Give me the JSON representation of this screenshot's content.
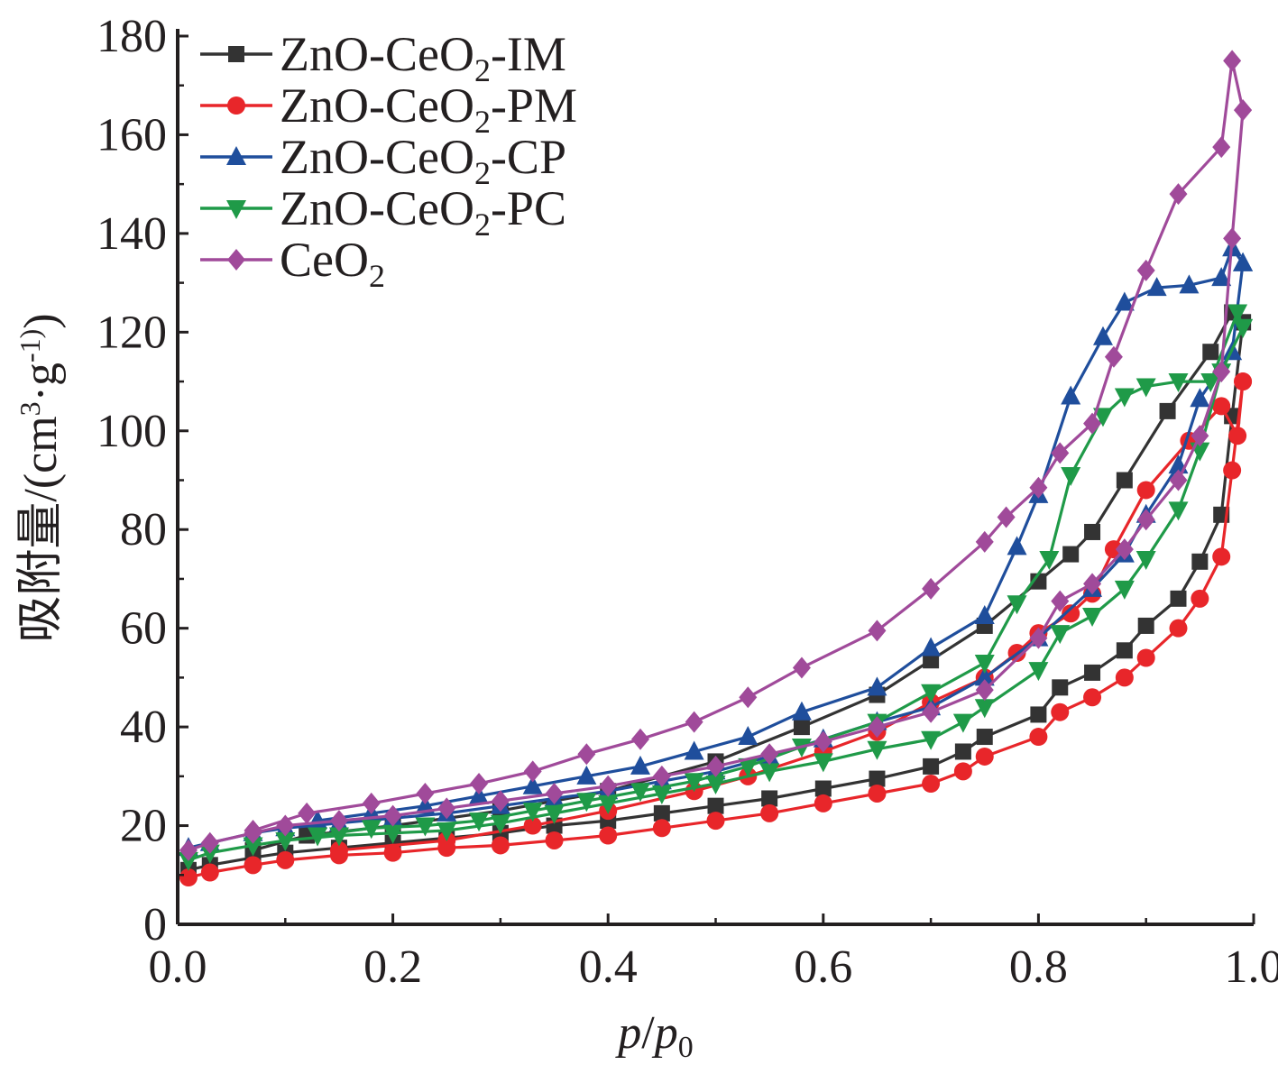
{
  "chart_data": {
    "type": "line",
    "title": "",
    "xlabel": "p/p0",
    "ylabel": "吸附量/(cm3·g-1)",
    "xlim": [
      0.0,
      1.0
    ],
    "ylim": [
      0,
      180
    ],
    "x_ticks": [
      "0.0",
      "0.2",
      "0.4",
      "0.6",
      "0.8",
      "1.0"
    ],
    "y_ticks": [
      "0",
      "20",
      "40",
      "60",
      "80",
      "100",
      "120",
      "140",
      "160",
      "180"
    ],
    "grid": false,
    "legend": {
      "placement": "top-left",
      "entries": [
        {
          "name": "ZnO-CeO2-IM",
          "prefix": "ZnO-CeO",
          "sub": "2",
          "suffix": "-IM"
        },
        {
          "name": "ZnO-CeO2-PM",
          "prefix": "ZnO-CeO",
          "sub": "2",
          "suffix": "-PM"
        },
        {
          "name": "ZnO-CeO2-CP",
          "prefix": "ZnO-CeO",
          "sub": "2",
          "suffix": "-CP"
        },
        {
          "name": "ZnO-CeO2-PC",
          "prefix": "ZnO-CeO",
          "sub": "2",
          "suffix": "-PC"
        },
        {
          "name": "CeO2",
          "prefix": "CeO",
          "sub": "2",
          "suffix": ""
        }
      ]
    },
    "series": [
      {
        "name": "ZnO-CeO2-IM",
        "color": "#333333",
        "marker": "square",
        "adsorption": [
          [
            0.01,
            11
          ],
          [
            0.03,
            12
          ],
          [
            0.07,
            13.5
          ],
          [
            0.1,
            14.5
          ],
          [
            0.15,
            15.5
          ],
          [
            0.2,
            16.5
          ],
          [
            0.25,
            17.5
          ],
          [
            0.3,
            18.5
          ],
          [
            0.35,
            20
          ],
          [
            0.4,
            21
          ],
          [
            0.45,
            22.5
          ],
          [
            0.5,
            24
          ],
          [
            0.55,
            25.5
          ],
          [
            0.6,
            27.5
          ],
          [
            0.65,
            29.5
          ],
          [
            0.7,
            32
          ],
          [
            0.73,
            35
          ],
          [
            0.75,
            38
          ],
          [
            0.8,
            42.5
          ],
          [
            0.82,
            48
          ],
          [
            0.85,
            51
          ],
          [
            0.88,
            55.5
          ],
          [
            0.9,
            60.5
          ],
          [
            0.93,
            66
          ],
          [
            0.95,
            73.5
          ],
          [
            0.97,
            83
          ],
          [
            0.98,
            103
          ],
          [
            0.99,
            122
          ]
        ],
        "desorption": [
          [
            0.99,
            122
          ],
          [
            0.98,
            124
          ],
          [
            0.96,
            116
          ],
          [
            0.92,
            104
          ],
          [
            0.88,
            90
          ],
          [
            0.85,
            79.5
          ],
          [
            0.83,
            75
          ],
          [
            0.8,
            69.5
          ],
          [
            0.75,
            60.5
          ],
          [
            0.7,
            53.5
          ],
          [
            0.65,
            46.5
          ],
          [
            0.58,
            40
          ],
          [
            0.5,
            33
          ],
          [
            0.4,
            27
          ],
          [
            0.3,
            23
          ],
          [
            0.2,
            20
          ],
          [
            0.12,
            18
          ],
          [
            0.07,
            15
          ]
        ]
      },
      {
        "name": "ZnO-CeO2-PM",
        "color": "#e8262a",
        "marker": "circle",
        "adsorption": [
          [
            0.01,
            9.5
          ],
          [
            0.03,
            10.5
          ],
          [
            0.07,
            12
          ],
          [
            0.1,
            13
          ],
          [
            0.15,
            14
          ],
          [
            0.2,
            14.5
          ],
          [
            0.25,
            15.5
          ],
          [
            0.3,
            16
          ],
          [
            0.35,
            17
          ],
          [
            0.4,
            18
          ],
          [
            0.45,
            19.5
          ],
          [
            0.5,
            21
          ],
          [
            0.55,
            22.5
          ],
          [
            0.6,
            24.5
          ],
          [
            0.65,
            26.5
          ],
          [
            0.7,
            28.5
          ],
          [
            0.73,
            31
          ],
          [
            0.75,
            34
          ],
          [
            0.8,
            38
          ],
          [
            0.82,
            43
          ],
          [
            0.85,
            46
          ],
          [
            0.88,
            50
          ],
          [
            0.9,
            54
          ],
          [
            0.93,
            60
          ],
          [
            0.95,
            66
          ],
          [
            0.97,
            74.5
          ],
          [
            0.98,
            92
          ],
          [
            0.99,
            110
          ]
        ],
        "desorption": [
          [
            0.99,
            110
          ],
          [
            0.985,
            99
          ],
          [
            0.97,
            105
          ],
          [
            0.94,
            98
          ],
          [
            0.9,
            88
          ],
          [
            0.87,
            76
          ],
          [
            0.85,
            67
          ],
          [
            0.83,
            63
          ],
          [
            0.8,
            59
          ],
          [
            0.78,
            55
          ],
          [
            0.75,
            50
          ],
          [
            0.7,
            45
          ],
          [
            0.65,
            39
          ],
          [
            0.6,
            35
          ],
          [
            0.53,
            30
          ],
          [
            0.48,
            27
          ],
          [
            0.4,
            23
          ],
          [
            0.33,
            20
          ],
          [
            0.25,
            17
          ],
          [
            0.15,
            15
          ]
        ]
      },
      {
        "name": "ZnO-CeO2-CP",
        "color": "#1f4e9c",
        "marker": "triangle-up",
        "adsorption": [
          [
            0.01,
            15.5
          ],
          [
            0.03,
            16.5
          ],
          [
            0.07,
            18.5
          ],
          [
            0.1,
            19.5
          ],
          [
            0.15,
            20.5
          ],
          [
            0.2,
            21.5
          ],
          [
            0.25,
            22.5
          ],
          [
            0.3,
            24
          ],
          [
            0.35,
            25.5
          ],
          [
            0.4,
            27
          ],
          [
            0.45,
            29
          ],
          [
            0.5,
            31
          ],
          [
            0.55,
            34
          ],
          [
            0.6,
            37.5
          ],
          [
            0.65,
            41
          ],
          [
            0.7,
            44
          ],
          [
            0.75,
            50
          ],
          [
            0.8,
            58
          ],
          [
            0.85,
            68
          ],
          [
            0.88,
            75
          ],
          [
            0.9,
            83
          ],
          [
            0.93,
            93
          ],
          [
            0.95,
            106.5
          ],
          [
            0.98,
            116
          ],
          [
            0.99,
            134
          ]
        ],
        "desorption": [
          [
            0.99,
            134
          ],
          [
            0.98,
            137
          ],
          [
            0.97,
            131
          ],
          [
            0.94,
            129.5
          ],
          [
            0.91,
            129
          ],
          [
            0.88,
            126
          ],
          [
            0.86,
            119
          ],
          [
            0.83,
            107
          ],
          [
            0.8,
            87
          ],
          [
            0.78,
            76.5
          ],
          [
            0.75,
            62.5
          ],
          [
            0.7,
            56
          ],
          [
            0.65,
            48
          ],
          [
            0.58,
            43
          ],
          [
            0.53,
            38
          ],
          [
            0.48,
            35
          ],
          [
            0.43,
            32
          ],
          [
            0.38,
            30
          ],
          [
            0.33,
            28
          ],
          [
            0.28,
            26
          ],
          [
            0.23,
            24
          ],
          [
            0.18,
            22.5
          ],
          [
            0.13,
            21
          ]
        ]
      },
      {
        "name": "ZnO-CeO2-PC",
        "color": "#1f9a48",
        "marker": "triangle-down",
        "adsorption": [
          [
            0.01,
            13
          ],
          [
            0.03,
            14.5
          ],
          [
            0.07,
            16
          ],
          [
            0.1,
            17
          ],
          [
            0.15,
            18
          ],
          [
            0.2,
            18.5
          ],
          [
            0.25,
            19
          ],
          [
            0.3,
            20.5
          ],
          [
            0.35,
            22.5
          ],
          [
            0.4,
            24.5
          ],
          [
            0.45,
            26.5
          ],
          [
            0.5,
            28.5
          ],
          [
            0.55,
            31
          ],
          [
            0.6,
            33
          ],
          [
            0.65,
            35.5
          ],
          [
            0.7,
            37.5
          ],
          [
            0.73,
            41
          ],
          [
            0.75,
            44
          ],
          [
            0.8,
            51.5
          ],
          [
            0.82,
            59
          ],
          [
            0.85,
            62.5
          ],
          [
            0.88,
            68
          ],
          [
            0.9,
            74
          ],
          [
            0.93,
            84
          ],
          [
            0.95,
            96
          ],
          [
            0.97,
            112
          ],
          [
            0.99,
            121
          ]
        ],
        "desorption": [
          [
            0.99,
            121
          ],
          [
            0.985,
            124
          ],
          [
            0.96,
            110
          ],
          [
            0.93,
            110
          ],
          [
            0.9,
            109
          ],
          [
            0.88,
            107
          ],
          [
            0.86,
            103
          ],
          [
            0.83,
            91
          ],
          [
            0.81,
            74
          ],
          [
            0.78,
            65
          ],
          [
            0.75,
            53
          ],
          [
            0.7,
            47
          ],
          [
            0.65,
            41
          ],
          [
            0.58,
            36
          ],
          [
            0.53,
            32
          ],
          [
            0.48,
            29
          ],
          [
            0.43,
            27
          ],
          [
            0.38,
            25
          ],
          [
            0.33,
            23
          ],
          [
            0.28,
            21
          ],
          [
            0.23,
            20
          ],
          [
            0.18,
            19.5
          ],
          [
            0.13,
            18
          ]
        ]
      },
      {
        "name": "CeO2",
        "color": "#a04a9a",
        "marker": "diamond",
        "adsorption": [
          [
            0.01,
            15
          ],
          [
            0.03,
            16.5
          ],
          [
            0.07,
            18.5
          ],
          [
            0.1,
            20
          ],
          [
            0.15,
            21
          ],
          [
            0.2,
            22
          ],
          [
            0.25,
            23.5
          ],
          [
            0.3,
            25
          ],
          [
            0.35,
            26.5
          ],
          [
            0.4,
            28
          ],
          [
            0.45,
            30
          ],
          [
            0.5,
            32
          ],
          [
            0.55,
            34.5
          ],
          [
            0.6,
            37
          ],
          [
            0.65,
            40
          ],
          [
            0.7,
            43
          ],
          [
            0.75,
            47.5
          ],
          [
            0.8,
            58
          ],
          [
            0.82,
            65.5
          ],
          [
            0.85,
            69
          ],
          [
            0.88,
            76
          ],
          [
            0.9,
            82
          ],
          [
            0.93,
            90
          ],
          [
            0.95,
            99
          ],
          [
            0.97,
            112
          ],
          [
            0.98,
            139
          ],
          [
            0.99,
            165
          ]
        ],
        "desorption": [
          [
            0.99,
            165
          ],
          [
            0.98,
            175
          ],
          [
            0.97,
            157.5
          ],
          [
            0.93,
            148
          ],
          [
            0.9,
            132.5
          ],
          [
            0.87,
            115
          ],
          [
            0.85,
            101.5
          ],
          [
            0.82,
            95.5
          ],
          [
            0.8,
            88.5
          ],
          [
            0.77,
            82.5
          ],
          [
            0.75,
            77.5
          ],
          [
            0.7,
            68
          ],
          [
            0.65,
            59.5
          ],
          [
            0.58,
            52
          ],
          [
            0.53,
            46
          ],
          [
            0.48,
            41
          ],
          [
            0.43,
            37.5
          ],
          [
            0.38,
            34.5
          ],
          [
            0.33,
            31
          ],
          [
            0.28,
            28.5
          ],
          [
            0.23,
            26.5
          ],
          [
            0.18,
            24.5
          ],
          [
            0.12,
            22.5
          ],
          [
            0.07,
            19
          ]
        ]
      }
    ]
  }
}
